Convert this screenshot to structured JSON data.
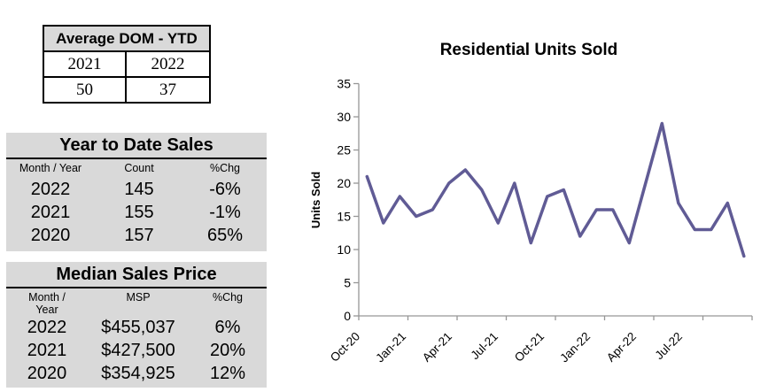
{
  "dom_table": {
    "title": "Average DOM - YTD",
    "years": [
      "2021",
      "2022"
    ],
    "values": [
      "50",
      "37"
    ]
  },
  "ytd_sales": {
    "title": "Year to Date Sales",
    "headers": [
      "Month / Year",
      "Count",
      "%Chg"
    ],
    "rows": [
      [
        "2022",
        "145",
        "-6%"
      ],
      [
        "2021",
        "155",
        "-1%"
      ],
      [
        "2020",
        "157",
        "65%"
      ]
    ]
  },
  "median_sales": {
    "title": "Median Sales Price",
    "headers": [
      "Month / Year",
      "MSP",
      "%Chg"
    ],
    "rows": [
      [
        "2022",
        "$455,037",
        "6%"
      ],
      [
        "2021",
        "$427,500",
        "20%"
      ],
      [
        "2020",
        "$354,925",
        "12%"
      ]
    ]
  },
  "chart_data": {
    "type": "line",
    "title": "Residential Units Sold",
    "ylabel": "Units Sold",
    "xlabel": "",
    "ylim": [
      0,
      35
    ],
    "ytick_step": 5,
    "x": [
      "Oct-20",
      "Nov-20",
      "Dec-20",
      "Jan-21",
      "Feb-21",
      "Mar-21",
      "Apr-21",
      "May-21",
      "Jun-21",
      "Jul-21",
      "Aug-21",
      "Sep-21",
      "Oct-21",
      "Nov-21",
      "Dec-21",
      "Jan-22",
      "Feb-22",
      "Mar-22",
      "Apr-22",
      "May-22",
      "Jun-22",
      "Jul-22",
      "Aug-22",
      "Sep-22"
    ],
    "series": [
      {
        "name": "Units Sold",
        "values": [
          21,
          14,
          18,
          15,
          16,
          20,
          22,
          19,
          14,
          20,
          11,
          18,
          19,
          12,
          16,
          16,
          11,
          20,
          29,
          17,
          13,
          13,
          17,
          9
        ],
        "color": "#605B95"
      }
    ],
    "x_tick_every": 3,
    "x_tick_labels": [
      "Oct-20",
      "Jan-21",
      "Apr-21",
      "Jul-21",
      "Oct-21",
      "Jan-22",
      "Apr-22",
      "Jul-22"
    ],
    "grid": false,
    "legend": "none",
    "axis_color": "#969696",
    "tick_text_color": "#000000"
  },
  "colors": {
    "panel_bg": "#D9D9D9",
    "table_border": "#000000"
  }
}
